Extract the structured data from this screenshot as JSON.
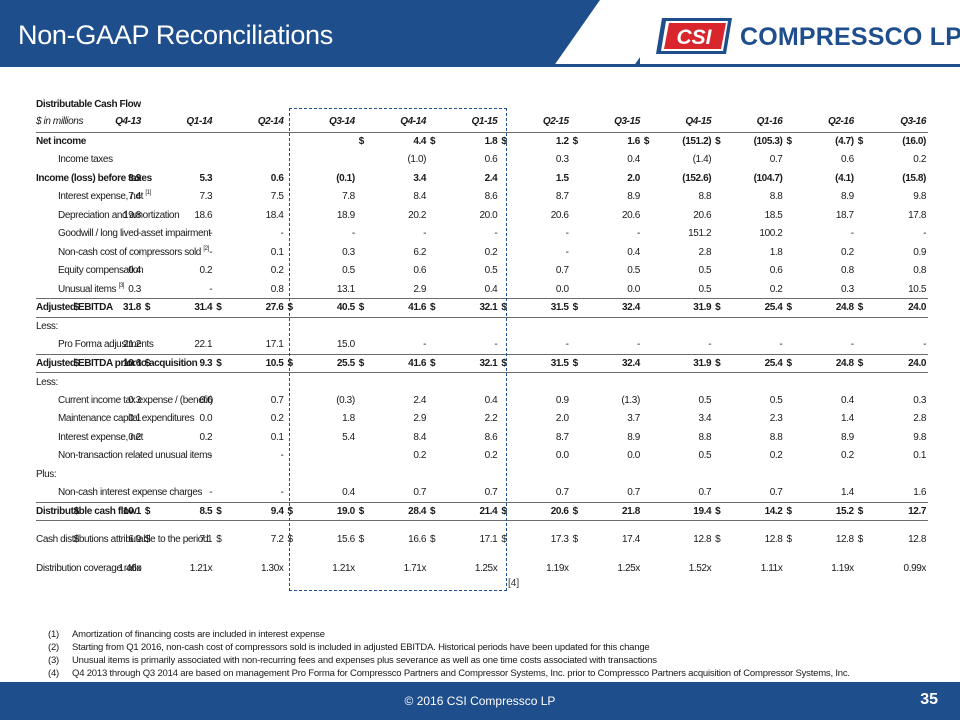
{
  "slide": {
    "title": "Non-GAAP Reconciliations",
    "page_number": "35",
    "copyright": "© 2016 CSI Compressco LP",
    "box_note": "[4]"
  },
  "logo": {
    "badge_text": "CSI",
    "wordmark": "COMPRESSCO LP",
    "trademark": "TM"
  },
  "colors": {
    "brand_blue": "#1f4e8c",
    "logo_red": "#d8262c"
  },
  "table": {
    "title": "Distributable Cash Flow",
    "unit_label": "$ in millions",
    "quarters": [
      "Q4-13",
      "Q1-14",
      "Q2-14",
      "Q3-14",
      "Q4-14",
      "Q1-15",
      "Q2-15",
      "Q3-15",
      "Q4-15",
      "Q1-16",
      "Q2-16",
      "Q3-16"
    ],
    "sections": {
      "less1": "Less:",
      "less2": "Less:",
      "plus": "Plus:"
    },
    "rows": {
      "net_income": {
        "label": "Net income",
        "cur": [
          "",
          "",
          "",
          "",
          "$",
          "$",
          "$",
          "$",
          "$",
          "$",
          "$",
          "$"
        ],
        "values": [
          "",
          "",
          "",
          "",
          "4.4",
          "1.8",
          "1.2",
          "1.6",
          "(151.2)",
          "(105.3)",
          "(4.7)",
          "(16.0)"
        ]
      },
      "income_taxes": {
        "label": "Income taxes",
        "cur": [
          "",
          "",
          "",
          "",
          "",
          "",
          "",
          "",
          "",
          "",
          "",
          ""
        ],
        "values": [
          "",
          "",
          "",
          "",
          "(1.0)",
          "0.6",
          "0.3",
          "0.4",
          "(1.4)",
          "0.7",
          "0.6",
          "0.2"
        ]
      },
      "income_before_taxes": {
        "label": "Income (loss) before taxes",
        "cur": [
          "",
          "",
          "",
          "",
          "",
          "",
          "",
          "",
          "",
          "",
          "",
          ""
        ],
        "values": [
          "3.9",
          "5.3",
          "0.6",
          "(0.1)",
          "3.4",
          "2.4",
          "1.5",
          "2.0",
          "(152.6)",
          "(104.7)",
          "(4.1)",
          "(15.8)"
        ]
      },
      "interest_expense_net": {
        "label": "Interest expense, net",
        "sup": "[1]",
        "cur": [
          "",
          "",
          "",
          "",
          "",
          "",
          "",
          "",
          "",
          "",
          "",
          ""
        ],
        "values": [
          "7.4",
          "7.3",
          "7.5",
          "7.8",
          "8.4",
          "8.6",
          "8.7",
          "8.9",
          "8.8",
          "8.8",
          "8.9",
          "9.8"
        ]
      },
      "dep_amort": {
        "label": "Depreciation and amortization",
        "cur": [
          "",
          "",
          "",
          "",
          "",
          "",
          "",
          "",
          "",
          "",
          "",
          ""
        ],
        "values": [
          "19.8",
          "18.6",
          "18.4",
          "18.9",
          "20.2",
          "20.0",
          "20.6",
          "20.6",
          "20.6",
          "18.5",
          "18.7",
          "17.8"
        ]
      },
      "goodwill": {
        "label": "Goodwill / long lived asset impairment",
        "cur": [
          "",
          "",
          "",
          "",
          "",
          "",
          "",
          "",
          "",
          "",
          "",
          ""
        ],
        "values": [
          "-",
          "-",
          "-",
          "-",
          "-",
          "-",
          "-",
          "-",
          "151.2",
          "100.2",
          "-",
          "-"
        ]
      },
      "noncash_cost": {
        "label": "Non-cash cost of compressors sold",
        "sup": "[2]",
        "cur": [
          "",
          "",
          "",
          "",
          "",
          "",
          "",
          "",
          "",
          "",
          "",
          ""
        ],
        "values": [
          "-",
          "-",
          "0.1",
          "0.3",
          "6.2",
          "0.2",
          "-",
          "0.4",
          "2.8",
          "1.8",
          "0.2",
          "0.9"
        ]
      },
      "equity_comp": {
        "label": "Equity compensation",
        "cur": [
          "",
          "",
          "",
          "",
          "",
          "",
          "",
          "",
          "",
          "",
          "",
          ""
        ],
        "values": [
          "0.4",
          "0.2",
          "0.2",
          "0.5",
          "0.6",
          "0.5",
          "0.7",
          "0.5",
          "0.5",
          "0.6",
          "0.8",
          "0.8"
        ]
      },
      "unusual_items": {
        "label": "Unusual items",
        "sup": "[3]",
        "cur": [
          "",
          "",
          "",
          "",
          "",
          "",
          "",
          "",
          "",
          "",
          "",
          ""
        ],
        "values": [
          "0.3",
          "-",
          "0.8",
          "13.1",
          "2.9",
          "0.4",
          "0.0",
          "0.0",
          "0.5",
          "0.2",
          "0.3",
          "10.5"
        ]
      },
      "adjusted_ebitda": {
        "label": "Adjusted EBITDA",
        "cur": [
          "$",
          "$",
          "$",
          "$",
          "$",
          "$",
          "$",
          "$",
          "",
          "$",
          "$",
          "$"
        ],
        "values": [
          "31.8",
          "31.4",
          "27.6",
          "40.5",
          "41.6",
          "32.1",
          "31.5",
          "32.4",
          "31.9",
          "25.4",
          "24.8",
          "24.0"
        ]
      },
      "pro_forma": {
        "label": "Pro Forma adjustments",
        "cur": [
          "",
          "",
          "",
          "",
          "",
          "",
          "",
          "",
          "",
          "",
          "",
          ""
        ],
        "values": [
          "21.2",
          "22.1",
          "17.1",
          "15.0",
          "-",
          "-",
          "-",
          "-",
          "-",
          "-",
          "-",
          "-"
        ]
      },
      "ebitda_prior": {
        "label": "Adjusted EBITDA prior to acquisition",
        "cur": [
          "$",
          "$",
          "$",
          "$",
          "$",
          "$",
          "$",
          "$",
          "",
          "$",
          "$",
          "$"
        ],
        "values": [
          "10.6",
          "9.3",
          "10.5",
          "25.5",
          "41.6",
          "32.1",
          "31.5",
          "32.4",
          "31.9",
          "25.4",
          "24.8",
          "24.0"
        ]
      },
      "current_tax": {
        "label": "Current income tax expense / (benefit)",
        "cur": [
          "",
          "",
          "",
          "",
          "",
          "",
          "",
          "",
          "",
          "",
          "",
          ""
        ],
        "values": [
          "0.3",
          "0.6",
          "0.7",
          "(0.3)",
          "2.4",
          "0.4",
          "0.9",
          "(1.3)",
          "0.5",
          "0.5",
          "0.4",
          "0.3"
        ]
      },
      "maint_capex": {
        "label": "Maintenance capital expenditures",
        "cur": [
          "",
          "",
          "",
          "",
          "",
          "",
          "",
          "",
          "",
          "",
          "",
          ""
        ],
        "values": [
          "0.1",
          "0.0",
          "0.2",
          "1.8",
          "2.9",
          "2.2",
          "2.0",
          "3.7",
          "3.4",
          "2.3",
          "1.4",
          "2.8"
        ]
      },
      "interest_expense": {
        "label": "Interest expense, net",
        "cur": [
          "",
          "",
          "",
          "",
          "",
          "",
          "",
          "",
          "",
          "",
          "",
          ""
        ],
        "values": [
          "0.2",
          "0.2",
          "0.1",
          "5.4",
          "8.4",
          "8.6",
          "8.7",
          "8.9",
          "8.8",
          "8.8",
          "8.9",
          "9.8"
        ]
      },
      "nontransaction": {
        "label": "Non-transaction related unusual items",
        "cur": [
          "",
          "",
          "",
          "",
          "",
          "",
          "",
          "",
          "",
          "",
          "",
          ""
        ],
        "values": [
          "-",
          "-",
          "-",
          "",
          "0.2",
          "0.2",
          "0.0",
          "0.0",
          "0.5",
          "0.2",
          "0.2",
          "0.1"
        ]
      },
      "noncash_interest": {
        "label": "Non-cash interest expense charges",
        "cur": [
          "",
          "",
          "",
          "",
          "",
          "",
          "",
          "",
          "",
          "",
          "",
          ""
        ],
        "values": [
          "-",
          "-",
          "-",
          "0.4",
          "0.7",
          "0.7",
          "0.7",
          "0.7",
          "0.7",
          "0.7",
          "1.4",
          "1.6"
        ]
      },
      "dcf": {
        "label": "Distributable cash flow",
        "cur": [
          "$",
          "$",
          "$",
          "$",
          "$",
          "$",
          "$",
          "$",
          "",
          "$",
          "$",
          "$"
        ],
        "values": [
          "10.1",
          "8.5",
          "9.4",
          "19.0",
          "28.4",
          "21.4",
          "20.6",
          "21.8",
          "19.4",
          "14.2",
          "15.2",
          "12.7"
        ]
      },
      "cash_dist": {
        "label": "Cash distributions attributable to the period",
        "cur": [
          "$",
          "$",
          "$",
          "$",
          "$",
          "$",
          "$",
          "$",
          "",
          "$",
          "$",
          "$"
        ],
        "values": [
          "6.9",
          "7.1",
          "7.2",
          "15.6",
          "16.6",
          "17.1",
          "17.3",
          "17.4",
          "12.8",
          "12.8",
          "12.8",
          "12.8"
        ]
      },
      "coverage": {
        "label": "Distribution coverage ratio",
        "cur": [
          "",
          "",
          "",
          "",
          "",
          "",
          "",
          "",
          "",
          "",
          "",
          ""
        ],
        "values": [
          "1.46x",
          "1.21x",
          "1.30x",
          "1.21x",
          "1.71x",
          "1.25x",
          "1.19x",
          "1.25x",
          "1.52x",
          "1.11x",
          "1.19x",
          "0.99x"
        ]
      }
    }
  },
  "footnotes": [
    {
      "num": "(1)",
      "text": "Amortization of financing costs are included in interest expense"
    },
    {
      "num": "(2)",
      "text": "Starting from Q1 2016, non-cash cost of compressors sold is included in adjusted EBITDA. Historical periods have been updated for this change"
    },
    {
      "num": "(3)",
      "text": "Unusual items is primarily associated with non-recurring fees and expenses plus severance as well as one time costs associated with transactions"
    },
    {
      "num": "(4)",
      "text": "Q4 2013 through Q3 2014 are based on management Pro Forma for Compressco Partners and Compressor Systems, Inc. prior to Compressco Partners acquisition of Compressor Systems, Inc."
    }
  ]
}
